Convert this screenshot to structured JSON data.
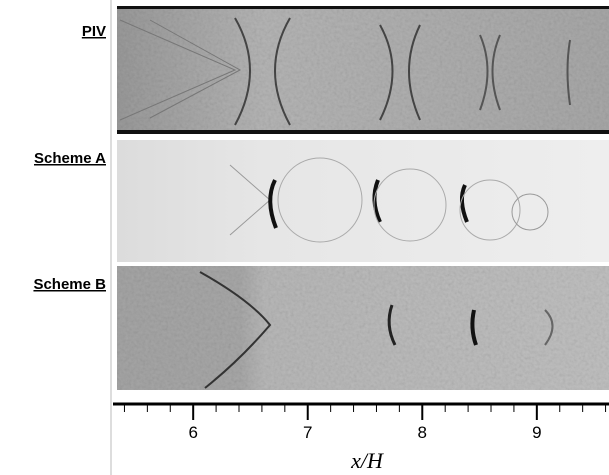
{
  "chart_data": {
    "type": "image-panels",
    "panels": [
      {
        "label": "PIV"
      },
      {
        "label": "Scheme A"
      },
      {
        "label": "Scheme B"
      }
    ],
    "xlabel": "x/H",
    "xlim": [
      5.3,
      9.63
    ],
    "xticks": [
      6,
      7,
      8,
      9
    ]
  }
}
